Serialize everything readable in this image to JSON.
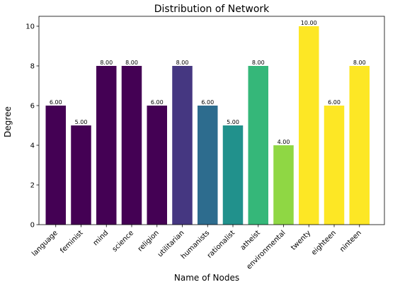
{
  "chart_data": {
    "type": "bar",
    "title": "Distribution of Network",
    "xlabel": "Name of Nodes",
    "ylabel": "Degree",
    "categories": [
      "language",
      "feminist",
      "mind",
      "science",
      "religion",
      "utilitarian",
      "humanists",
      "rationalist",
      "atheist",
      "environmental",
      "twenty",
      "eighteen",
      "ninteen"
    ],
    "values": [
      6,
      5,
      8,
      8,
      6,
      8,
      6,
      5,
      8,
      4,
      10,
      6,
      8
    ],
    "value_labels": [
      "6.00",
      "5.00",
      "8.00",
      "8.00",
      "6.00",
      "8.00",
      "6.00",
      "5.00",
      "8.00",
      "4.00",
      "10.00",
      "6.00",
      "8.00"
    ],
    "colors": [
      "#440154",
      "#440154",
      "#440154",
      "#440154",
      "#440154",
      "#453781",
      "#2d6c8e",
      "#21918c",
      "#35b779",
      "#8fd744",
      "#fde725",
      "#fde725",
      "#fde725"
    ],
    "ylim": [
      0,
      10.5
    ],
    "yticks": [
      0,
      2,
      4,
      6,
      8,
      10
    ],
    "grid": false,
    "legend": "none"
  }
}
